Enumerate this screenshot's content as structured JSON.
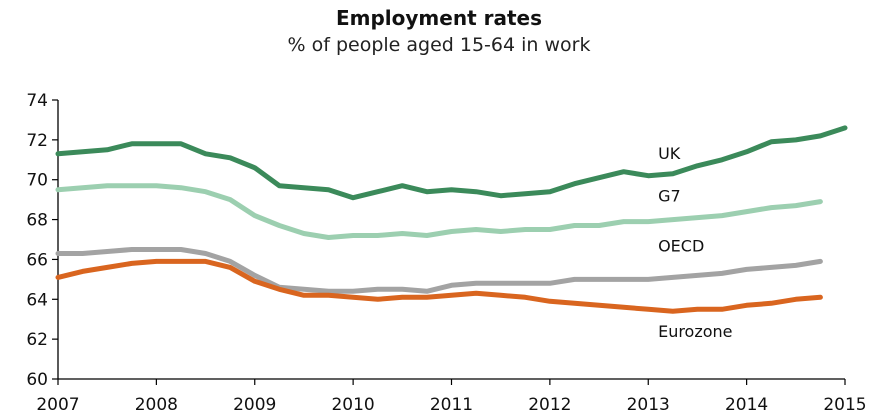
{
  "chart_data": {
    "type": "line",
    "title": "Employment rates",
    "subtitle": "% of people aged 15-64 in work",
    "xlabel": "",
    "ylabel": "",
    "xlim": [
      2007,
      2015
    ],
    "ylim": [
      60,
      74
    ],
    "x_ticks": [
      "2007",
      "2008",
      "2009",
      "2010",
      "2011",
      "2012",
      "2013",
      "2014",
      "2015"
    ],
    "y_ticks": [
      "60",
      "62",
      "64",
      "66",
      "68",
      "70",
      "72",
      "74"
    ],
    "grid": false,
    "legend": "inline labels",
    "x": [
      2007.0,
      2007.25,
      2007.5,
      2007.75,
      2008.0,
      2008.25,
      2008.5,
      2008.75,
      2009.0,
      2009.25,
      2009.5,
      2009.75,
      2010.0,
      2010.25,
      2010.5,
      2010.75,
      2011.0,
      2011.25,
      2011.5,
      2011.75,
      2012.0,
      2012.25,
      2012.5,
      2012.75,
      2013.0,
      2013.25,
      2013.5,
      2013.75,
      2014.0,
      2014.25,
      2014.5,
      2014.75,
      2015.0
    ],
    "series": [
      {
        "name": "UK",
        "color": "#3b8a5a",
        "values": [
          71.3,
          71.4,
          71.5,
          71.8,
          71.8,
          71.8,
          71.3,
          71.1,
          70.6,
          69.7,
          69.6,
          69.5,
          69.1,
          69.4,
          69.7,
          69.4,
          69.5,
          69.4,
          69.2,
          69.3,
          69.4,
          69.8,
          70.1,
          70.4,
          70.2,
          70.3,
          70.7,
          71.0,
          71.4,
          71.9,
          72.0,
          72.2,
          72.6
        ]
      },
      {
        "name": "G7",
        "color": "#9ccfb0",
        "values": [
          69.5,
          69.6,
          69.7,
          69.7,
          69.7,
          69.6,
          69.4,
          69.0,
          68.2,
          67.7,
          67.3,
          67.1,
          67.2,
          67.2,
          67.3,
          67.2,
          67.4,
          67.5,
          67.4,
          67.5,
          67.5,
          67.7,
          67.7,
          67.9,
          67.9,
          68.0,
          68.1,
          68.2,
          68.4,
          68.6,
          68.7,
          68.9,
          null
        ]
      },
      {
        "name": "OECD",
        "color": "#a3a3a3",
        "values": [
          66.3,
          66.3,
          66.4,
          66.5,
          66.5,
          66.5,
          66.3,
          65.9,
          65.2,
          64.6,
          64.5,
          64.4,
          64.4,
          64.5,
          64.5,
          64.4,
          64.7,
          64.8,
          64.8,
          64.8,
          64.8,
          65.0,
          65.0,
          65.0,
          65.0,
          65.1,
          65.2,
          65.3,
          65.5,
          65.6,
          65.7,
          65.9,
          null
        ]
      },
      {
        "name": "Eurozone",
        "color": "#d9651f",
        "values": [
          65.1,
          65.4,
          65.6,
          65.8,
          65.9,
          65.9,
          65.9,
          65.6,
          64.9,
          64.5,
          64.2,
          64.2,
          64.1,
          64.0,
          64.1,
          64.1,
          64.2,
          64.3,
          64.2,
          64.1,
          63.9,
          63.8,
          63.7,
          63.6,
          63.5,
          63.4,
          63.5,
          63.5,
          63.7,
          63.8,
          64.0,
          64.1,
          null
        ]
      }
    ]
  }
}
